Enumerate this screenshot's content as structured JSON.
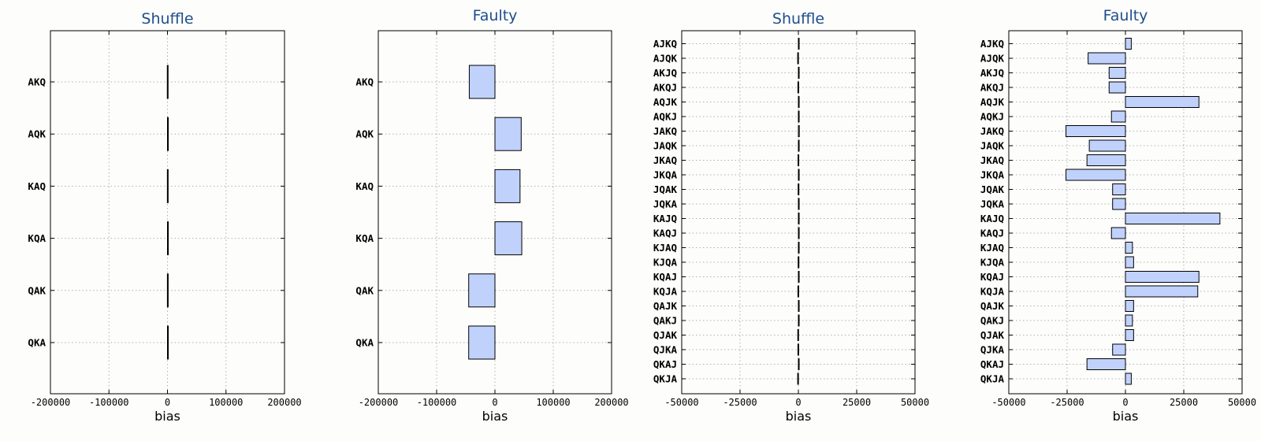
{
  "colors": {
    "bar_fill": "#c0d2fb",
    "bar_edge": "#000000",
    "title": "#1f4e8c",
    "grid": "#b0b0b0"
  },
  "chart_data": [
    {
      "type": "bar",
      "orientation": "horizontal",
      "title": "Shuffle",
      "xlabel": "bias",
      "xlim": [
        -200000,
        200000
      ],
      "xticks": [
        "-200000",
        "-100000",
        "0",
        "100000",
        "200000"
      ],
      "grid": true,
      "categories": [
        "AKQ",
        "AQK",
        "KAQ",
        "KQA",
        "QAK",
        "QKA"
      ],
      "values": [
        -300,
        400,
        -200,
        250,
        -150,
        300
      ]
    },
    {
      "type": "bar",
      "orientation": "horizontal",
      "title": "Faulty",
      "xlabel": "bias",
      "xlim": [
        -200000,
        200000
      ],
      "xticks": [
        "-200000",
        "-100000",
        "0",
        "100000",
        "200000"
      ],
      "grid": true,
      "categories": [
        "AKQ",
        "AQK",
        "KAQ",
        "KQA",
        "QAK",
        "QKA"
      ],
      "values": [
        -44000,
        45000,
        43000,
        46000,
        -45000,
        -45000
      ]
    },
    {
      "type": "bar",
      "orientation": "horizontal",
      "title": "Shuffle",
      "xlabel": "bias",
      "xlim": [
        -50000,
        50000
      ],
      "xticks": [
        "-50000",
        "-25000",
        "0",
        "25000",
        "50000"
      ],
      "grid": true,
      "categories": [
        "AJKQ",
        "AJQK",
        "AKJQ",
        "AKQJ",
        "AQJK",
        "AQKJ",
        "JAKQ",
        "JAQK",
        "JKAQ",
        "JKQA",
        "JQAK",
        "JQKA",
        "KAJQ",
        "KAQJ",
        "KJAQ",
        "KJQA",
        "KQAJ",
        "KQJA",
        "QAJK",
        "QAKJ",
        "QJAK",
        "QJKA",
        "QKAJ",
        "QKJA"
      ],
      "values": [
        300,
        -300,
        200,
        -200,
        200,
        300,
        400,
        250,
        -150,
        300,
        -100,
        300,
        200,
        350,
        250,
        -100,
        300,
        -200,
        300,
        250,
        -250,
        -200,
        150,
        -300
      ]
    },
    {
      "type": "bar",
      "orientation": "horizontal",
      "title": "Faulty",
      "xlabel": "bias",
      "xlim": [
        -50000,
        50000
      ],
      "xticks": [
        "-50000",
        "-25000",
        "0",
        "25000",
        "50000"
      ],
      "grid": true,
      "categories": [
        "AJKQ",
        "AJQK",
        "AKJQ",
        "AKQJ",
        "AQJK",
        "AQKJ",
        "JAKQ",
        "JAQK",
        "JKAQ",
        "JKQA",
        "JQAK",
        "JQKA",
        "KAJQ",
        "KAQJ",
        "KJAQ",
        "KJQA",
        "KQAJ",
        "KQJA",
        "QAJK",
        "QAKJ",
        "QJAK",
        "QJKA",
        "QKAJ",
        "QKJA"
      ],
      "values": [
        2500,
        -16000,
        -7000,
        -7000,
        31500,
        -6000,
        -25500,
        -15500,
        -16500,
        -25500,
        -5500,
        -5500,
        40500,
        -6000,
        3000,
        3500,
        31500,
        31000,
        3500,
        3000,
        3500,
        -5500,
        -16500,
        2500
      ]
    }
  ]
}
